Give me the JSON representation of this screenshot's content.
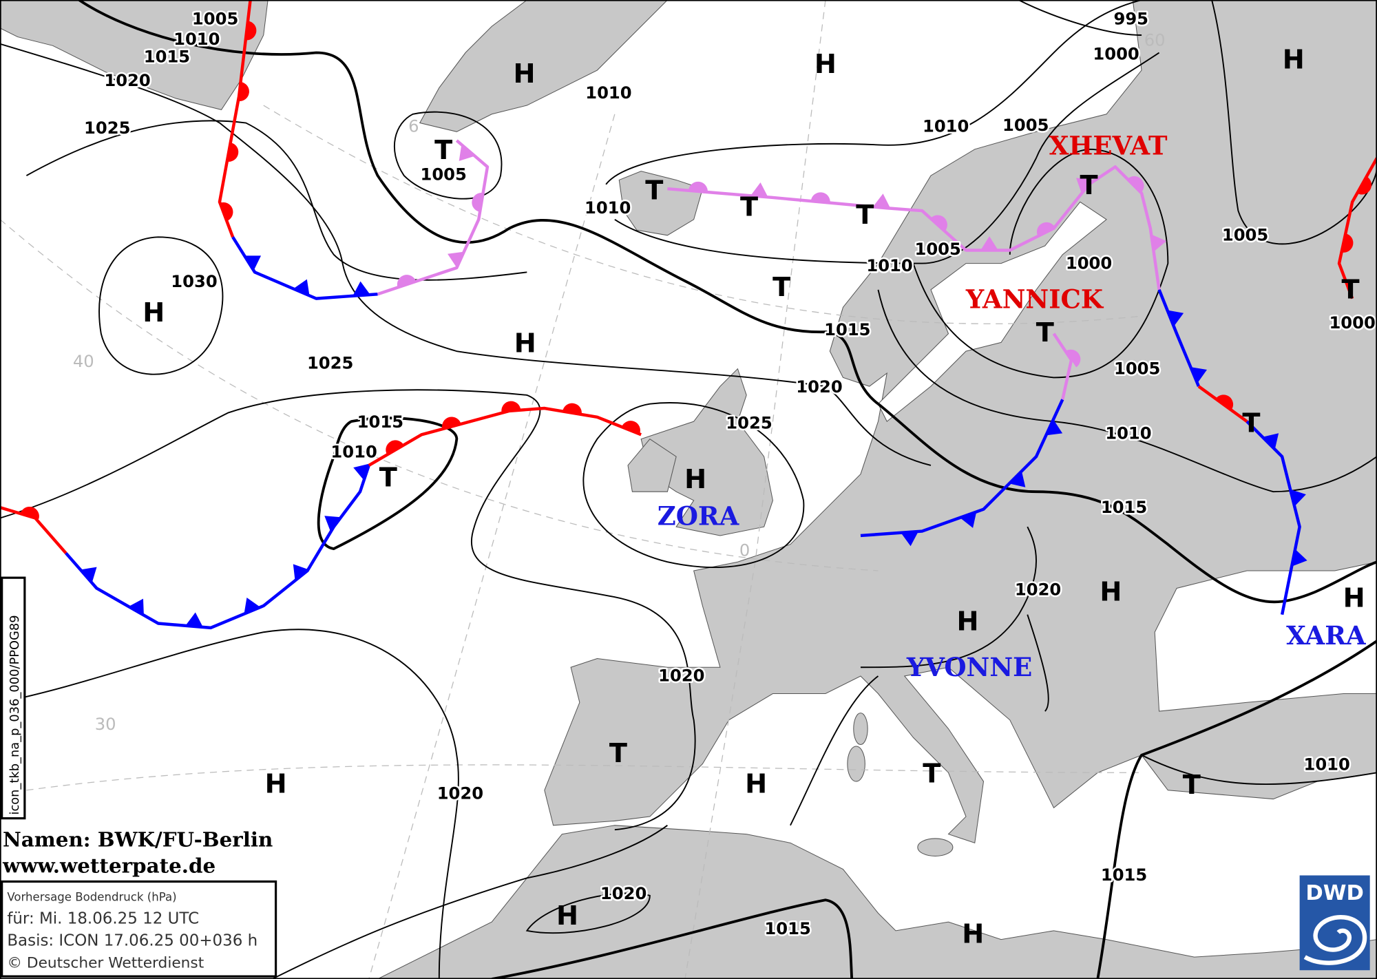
{
  "map": {
    "title": "Vorhersage Bodendruck (hPa)",
    "valid_for": "für:  Mi. 18.06.25  12 UTC",
    "basis": "Basis: ICON  17.06.25 00+036 h",
    "copyright": "© Deutscher Wetterdienst",
    "names_credit": "Namen: BWK/FU-Berlin",
    "website": "www.wetterpate.de",
    "product_code": "icon_tkb_na_p_036_000/PPOG89",
    "logo_text": "DWD",
    "colors": {
      "land": "#c8c8c8",
      "sea": "#ffffff",
      "warm_front": "#ff0000",
      "cold_front": "#0000ff",
      "occluded_front": "#e080e8",
      "high_name": "#1a1ae0",
      "low_name": "#e00000",
      "logo": "#2557a7"
    },
    "isobar_labels": [
      "1005",
      "1010",
      "1015",
      "1020",
      "1025",
      "1030",
      "1025",
      "1005",
      "1010",
      "1010",
      "1010",
      "1005",
      "995",
      "1000",
      "1010",
      "1005",
      "1000",
      "1005",
      "1000",
      "1015",
      "1020",
      "1025",
      "1005",
      "1010",
      "1015",
      "1015",
      "1010",
      "1020",
      "1020",
      "1020",
      "1020",
      "1015",
      "1015",
      "1010"
    ],
    "pressure_centers": [
      "H",
      "H",
      "H",
      "H",
      "H",
      "H",
      "H",
      "H",
      "H",
      "H",
      "H",
      "H",
      "H",
      "T",
      "T",
      "T",
      "T",
      "T",
      "T",
      "T",
      "T",
      "T",
      "T",
      "T",
      "T",
      "T"
    ],
    "system_names": [
      {
        "name": "XHEVAT",
        "kind": "low"
      },
      {
        "name": "YANNICK",
        "kind": "low"
      },
      {
        "name": "ZORA",
        "kind": "high"
      },
      {
        "name": "YVONNE",
        "kind": "high"
      },
      {
        "name": "XARA",
        "kind": "high"
      }
    ],
    "latitude_labels": [
      "6",
      "40",
      "30",
      "0",
      "60"
    ]
  }
}
